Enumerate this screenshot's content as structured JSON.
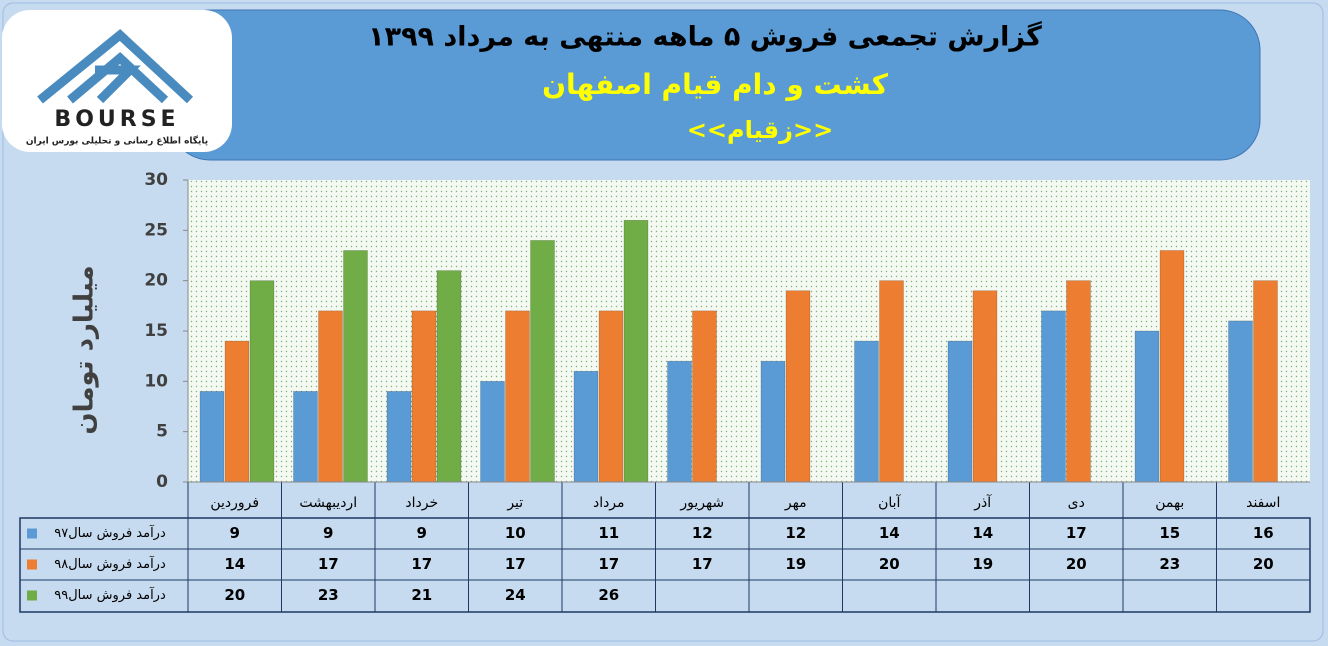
{
  "logo": {
    "text": "BOURSE",
    "tagline": "پایگاه اطلاع رسانی و تحلیلی بورس ایران"
  },
  "chart_data": {
    "type": "bar",
    "title": "گزارش تجمعی فروش  ۵ ماهه منتهی به مرداد ۱۳۹۹",
    "subtitle": "کشت و دام قیام اصفهان",
    "annotation": "<<زقیام>>",
    "y_label": "میلیارد تومان",
    "categories": [
      "فروردین",
      "اردیبهشت",
      "خرداد",
      "تیر",
      "مرداد",
      "شهریور",
      "مهر",
      "آبان",
      "آذر",
      "دی",
      "بهمن",
      "اسفند"
    ],
    "series": [
      {
        "name": "درآمد فروش سال۹۷",
        "color": "#5b9bd5",
        "values": [
          9,
          9,
          9,
          10,
          11,
          12,
          12,
          14,
          14,
          17,
          15,
          16
        ]
      },
      {
        "name": "درآمد فروش سال۹۸",
        "color": "#ed7d31",
        "values": [
          14,
          17,
          17,
          17,
          17,
          17,
          19,
          20,
          19,
          20,
          23,
          20
        ]
      },
      {
        "name": "درآمد فروش سال۹۹",
        "color": "#70ad47",
        "values": [
          20,
          23,
          21,
          24,
          26,
          null,
          null,
          null,
          null,
          null,
          null,
          null
        ]
      }
    ],
    "ylim": [
      0,
      30
    ],
    "yticks": [
      0,
      5,
      10,
      15,
      20,
      25,
      30
    ],
    "grid": false
  }
}
